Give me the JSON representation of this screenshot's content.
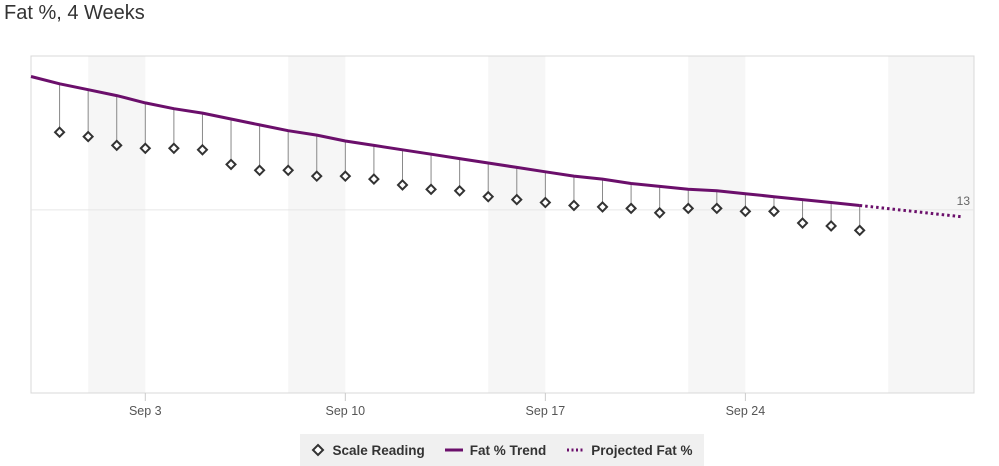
{
  "title": "Fat %, 4 Weeks",
  "colors": {
    "trend": "#6b0f6b",
    "marker": "#333333",
    "stem": "#888888",
    "band": "#f6f6f6",
    "grid": "#e6e6e6"
  },
  "legend": {
    "scale": "Scale Reading",
    "trend": "Fat % Trend",
    "projected": "Projected Fat %"
  },
  "chart_data": {
    "type": "line",
    "title": "Fat %, 4 Weeks",
    "xlabel": "",
    "ylabel": "",
    "x_start": "Aug 30",
    "x_end": "Oct 2",
    "x_ticks": [
      "Sep 3",
      "Sep 10",
      "Sep 17",
      "Sep 24"
    ],
    "y_range": [
      11.75,
      14.05
    ],
    "y_reference": 13,
    "y_reference_label": "13",
    "weekend_bands": [
      [
        "Sep 1",
        "Sep 3"
      ],
      [
        "Sep 8",
        "Sep 10"
      ],
      [
        "Sep 15",
        "Sep 17"
      ],
      [
        "Sep 22",
        "Sep 24"
      ],
      [
        "Sep 29",
        "Oct 2"
      ]
    ],
    "series": [
      {
        "name": "Scale Reading",
        "kind": "scatter",
        "x": [
          "Aug 31",
          "Sep 1",
          "Sep 2",
          "Sep 3",
          "Sep 4",
          "Sep 5",
          "Sep 6",
          "Sep 7",
          "Sep 8",
          "Sep 9",
          "Sep 10",
          "Sep 11",
          "Sep 12",
          "Sep 13",
          "Sep 14",
          "Sep 15",
          "Sep 16",
          "Sep 17",
          "Sep 18",
          "Sep 19",
          "Sep 20",
          "Sep 21",
          "Sep 22",
          "Sep 23",
          "Sep 24",
          "Sep 25",
          "Sep 26",
          "Sep 27",
          "Sep 28"
        ],
        "values": [
          13.53,
          13.5,
          13.44,
          13.42,
          13.42,
          13.41,
          13.31,
          13.27,
          13.27,
          13.23,
          13.23,
          13.21,
          13.17,
          13.14,
          13.13,
          13.09,
          13.07,
          13.05,
          13.03,
          13.02,
          13.01,
          12.98,
          13.01,
          13.01,
          12.99,
          12.99,
          12.91,
          12.89,
          12.86
        ]
      },
      {
        "name": "Fat % Trend",
        "kind": "line",
        "x": [
          "Aug 30",
          "Aug 31",
          "Sep 1",
          "Sep 2",
          "Sep 3",
          "Sep 4",
          "Sep 5",
          "Sep 6",
          "Sep 7",
          "Sep 8",
          "Sep 9",
          "Sep 10",
          "Sep 11",
          "Sep 12",
          "Sep 13",
          "Sep 14",
          "Sep 15",
          "Sep 16",
          "Sep 17",
          "Sep 18",
          "Sep 19",
          "Sep 20",
          "Sep 21",
          "Sep 22",
          "Sep 23",
          "Sep 24",
          "Sep 25",
          "Sep 26",
          "Sep 27",
          "Sep 28"
        ],
        "values": [
          13.91,
          13.86,
          13.82,
          13.78,
          13.73,
          13.69,
          13.66,
          13.62,
          13.58,
          13.54,
          13.51,
          13.47,
          13.44,
          13.41,
          13.38,
          13.35,
          13.32,
          13.29,
          13.26,
          13.23,
          13.21,
          13.18,
          13.16,
          13.14,
          13.13,
          13.11,
          13.09,
          13.07,
          13.05,
          13.03
        ]
      },
      {
        "name": "Projected Fat %",
        "kind": "dotted-line",
        "x": [
          "Sep 28",
          "Oct 4"
        ],
        "values": [
          13.03,
          12.9
        ]
      }
    ]
  }
}
